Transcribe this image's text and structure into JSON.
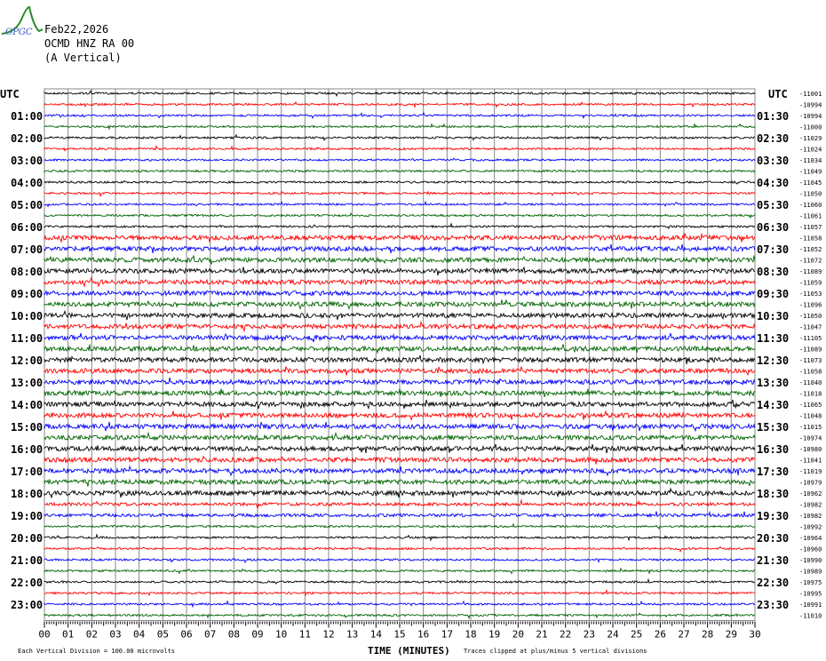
{
  "header": {
    "date": "Feb22,2026",
    "station": "OCMD HNZ RA 00",
    "component": "(A Vertical)",
    "logo_text": "OPGC"
  },
  "chart_data": {
    "type": "line",
    "subtype": "helicorder",
    "xlabel": "TIME (MINUTES)",
    "x_ticks": [
      "00",
      "01",
      "02",
      "03",
      "04",
      "05",
      "06",
      "07",
      "08",
      "09",
      "10",
      "11",
      "12",
      "13",
      "14",
      "15",
      "16",
      "17",
      "18",
      "19",
      "20",
      "21",
      "22",
      "23",
      "24",
      "25",
      "26",
      "27",
      "28",
      "29",
      "30"
    ],
    "xlim": [
      0,
      30
    ],
    "left_labels": [
      "UTC",
      "01:00",
      "02:00",
      "03:00",
      "04:00",
      "05:00",
      "06:00",
      "07:00",
      "08:00",
      "09:00",
      "10:00",
      "11:00",
      "12:00",
      "13:00",
      "14:00",
      "15:00",
      "16:00",
      "17:00",
      "18:00",
      "19:00",
      "20:00",
      "21:00",
      "22:00",
      "23:00"
    ],
    "right_labels": [
      "UTC",
      "01:30",
      "02:30",
      "03:30",
      "04:30",
      "05:30",
      "06:30",
      "07:30",
      "08:30",
      "09:30",
      "10:30",
      "11:30",
      "12:30",
      "13:30",
      "14:30",
      "15:30",
      "16:30",
      "17:30",
      "18:30",
      "19:30",
      "20:30",
      "21:30",
      "22:30",
      "23:30"
    ],
    "trace_offsets": [
      -11001,
      -10994,
      -10994,
      -11000,
      -11029,
      -11024,
      -11034,
      -11049,
      -11045,
      -11050,
      -11060,
      -11061,
      -11057,
      -11058,
      -11052,
      -11072,
      -11089,
      -11059,
      -11053,
      -11096,
      -11050,
      -11047,
      -11105,
      -11089,
      -11073,
      -11058,
      -11040,
      -11018,
      -11065,
      -11048,
      -11015,
      -10974,
      -10980,
      -11041,
      -11019,
      -10979,
      -10962,
      -10982,
      -10982,
      -10992,
      -10964,
      -10960,
      -10990,
      -10989,
      -10975,
      -10995,
      -10991,
      -11010
    ],
    "trace_colors": [
      "#000000",
      "#ff0000",
      "#0000ff",
      "#006400"
    ],
    "grid": true
  },
  "footer": {
    "scale": "Each Vertical Division =  100.00 microvolts",
    "clip": "Traces clipped at plus/minus 5 vertical divisions"
  }
}
